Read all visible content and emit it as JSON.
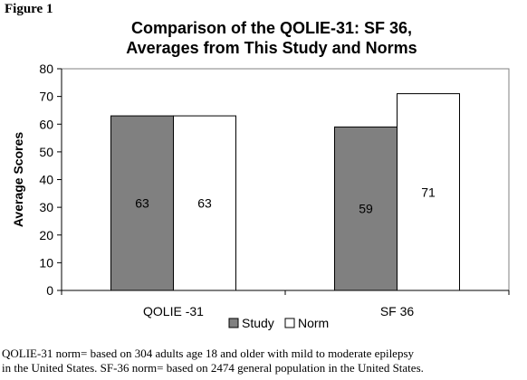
{
  "figure_label": "Figure 1",
  "chart_data": {
    "type": "bar",
    "title": [
      "Comparison of the QOLIE-31: SF 36,",
      "Averages from This Study and Norms"
    ],
    "xlabel": "",
    "ylabel": "Average Scores",
    "categories": [
      "QOLIE -31",
      "SF 36"
    ],
    "series": [
      {
        "name": "Study",
        "values": [
          63,
          59
        ],
        "color": "#808080"
      },
      {
        "name": "Norm",
        "values": [
          63,
          71
        ],
        "color": "#ffffff"
      }
    ],
    "data_labels": [
      [
        "63",
        "59"
      ],
      [
        "63",
        "71"
      ]
    ],
    "ylim": [
      0,
      80
    ],
    "yticks": [
      0,
      10,
      20,
      30,
      40,
      50,
      60,
      70,
      80
    ],
    "grid": false,
    "legend_position": "bottom"
  },
  "footnote": [
    "QOLIE-31 norm= based on 304 adults age 18 and older with mild to moderate epilepsy",
    "in the United States.  SF-36 norm= based on 2474 general population in the United States."
  ]
}
